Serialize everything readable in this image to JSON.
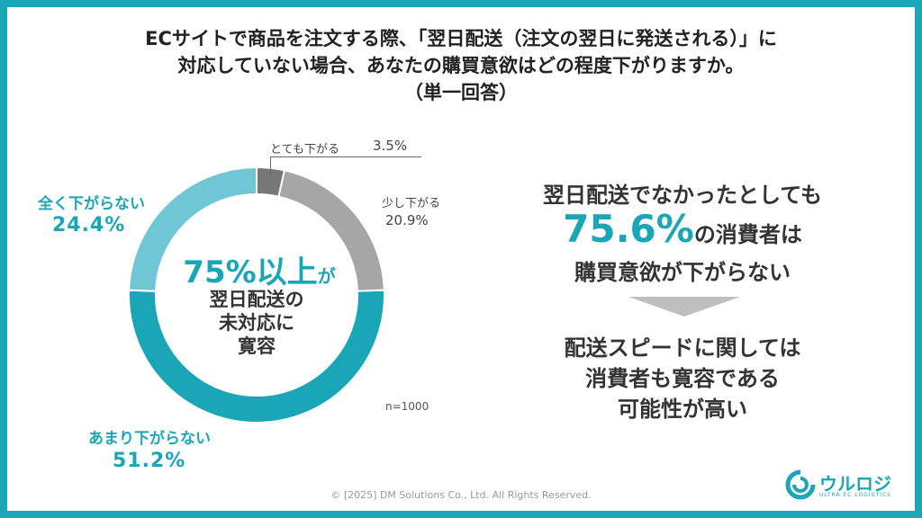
{
  "title_lines": [
    "ECサイトで商品を注文する際、「翌日配送（注文の翌日に発送される）」に",
    "対応していない場合、あなたの購買意欲はどの程度下がりますか。",
    "（単一回答）"
  ],
  "chart_data": {
    "type": "pie",
    "style": "donut",
    "categories": [
      "とても下がる",
      "少し下がる",
      "あまり下がらない",
      "全く下がらない"
    ],
    "values": [
      3.5,
      20.9,
      51.2,
      24.4
    ],
    "value_labels": [
      "3.5%",
      "20.9%",
      "51.2%",
      "24.4%"
    ],
    "colors": [
      "#777777",
      "#a6a6a6",
      "#1aa6b7",
      "#6fc7d6"
    ],
    "center_text": {
      "highlight": "75%以上",
      "highlight_suffix": "が",
      "lines": [
        "翌日配送の",
        "未対応に",
        "寛容"
      ]
    },
    "note": "n=1000"
  },
  "summary": {
    "line1": "翌日配送でなかったとしても",
    "highlight": "75.6%",
    "highlight_suffix": "の消費者は",
    "line3": "購買意欲が下がらない",
    "conclusion": [
      "配送スピードに関しては",
      "消費者も寛容である",
      "可能性が高い"
    ],
    "arrow_icon": "down-triangle-icon",
    "arrow_color": "#bfbfbf"
  },
  "footer": "© [2025] DM Solutions Co., Ltd. All Rights Reserved.",
  "logo": {
    "text": "ウルロジ",
    "subtext": "ULTRA EC LOGISTICS",
    "color": "#1aa6b7"
  },
  "frame_color": "#1aa6b7"
}
